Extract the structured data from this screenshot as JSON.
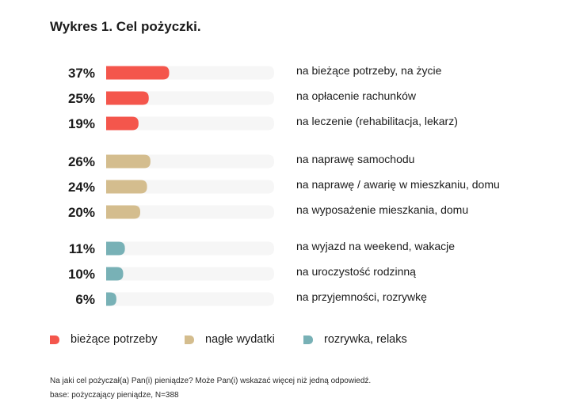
{
  "chart_data": {
    "type": "bar",
    "orientation": "horizontal",
    "title": "Wykres 1. Cel pożyczki.",
    "xlim": [
      0,
      100
    ],
    "value_suffix": "%",
    "groups": [
      {
        "name": "bieżące potrzeby",
        "color": "#f4564c",
        "items": [
          {
            "label": "na bieżące potrzeby, na życie",
            "value": 37
          },
          {
            "label": "na opłacenie rachunków",
            "value": 25
          },
          {
            "label": "na leczenie (rehabilitacja, lekarz)",
            "value": 19
          }
        ]
      },
      {
        "name": "nagłe wydatki",
        "color": "#d4bd8e",
        "items": [
          {
            "label": "na naprawę samochodu",
            "value": 26
          },
          {
            "label": "na naprawę / awarię w mieszkaniu, domu",
            "value": 24
          },
          {
            "label": "na wyposażenie mieszkania, domu",
            "value": 20
          }
        ]
      },
      {
        "name": "rozrywka, relaks",
        "color": "#78b1b6",
        "items": [
          {
            "label": "na wyjazd na weekend, wakacje",
            "value": 11
          },
          {
            "label": "na uroczystość rodzinną",
            "value": 10
          },
          {
            "label": "na przyjemności, rozrywkę",
            "value": 6
          }
        ]
      }
    ],
    "track_color": "#f6f6f6",
    "legend_position": "bottom"
  },
  "footnotes": {
    "question": "Na jaki cel pożyczał(a) Pan(i) pieniądze? Może Pan(i) wskazać więcej niż jedną odpowiedź.",
    "base": "base: pożyczający pieniądze, N=388"
  }
}
